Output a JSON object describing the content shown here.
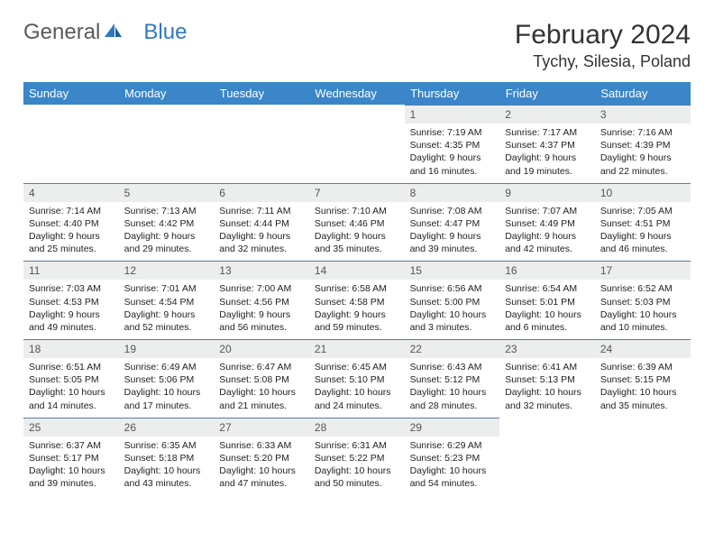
{
  "brand": {
    "part1": "General",
    "part2": "Blue"
  },
  "title": "February 2024",
  "location": "Tychy, Silesia, Poland",
  "colors": {
    "header_bg": "#3a86c8",
    "daynum_bg": "#eceded",
    "daynum_border": "#5b7ba0",
    "text": "#222222",
    "logo_gray": "#5a5a5a",
    "logo_blue": "#2f78bd"
  },
  "weekdays": [
    "Sunday",
    "Monday",
    "Tuesday",
    "Wednesday",
    "Thursday",
    "Friday",
    "Saturday"
  ],
  "weeks": [
    [
      null,
      null,
      null,
      null,
      {
        "n": "1",
        "sr": "7:19 AM",
        "ss": "4:35 PM",
        "dl": "9 hours and 16 minutes."
      },
      {
        "n": "2",
        "sr": "7:17 AM",
        "ss": "4:37 PM",
        "dl": "9 hours and 19 minutes."
      },
      {
        "n": "3",
        "sr": "7:16 AM",
        "ss": "4:39 PM",
        "dl": "9 hours and 22 minutes."
      }
    ],
    [
      {
        "n": "4",
        "sr": "7:14 AM",
        "ss": "4:40 PM",
        "dl": "9 hours and 25 minutes."
      },
      {
        "n": "5",
        "sr": "7:13 AM",
        "ss": "4:42 PM",
        "dl": "9 hours and 29 minutes."
      },
      {
        "n": "6",
        "sr": "7:11 AM",
        "ss": "4:44 PM",
        "dl": "9 hours and 32 minutes."
      },
      {
        "n": "7",
        "sr": "7:10 AM",
        "ss": "4:46 PM",
        "dl": "9 hours and 35 minutes."
      },
      {
        "n": "8",
        "sr": "7:08 AM",
        "ss": "4:47 PM",
        "dl": "9 hours and 39 minutes."
      },
      {
        "n": "9",
        "sr": "7:07 AM",
        "ss": "4:49 PM",
        "dl": "9 hours and 42 minutes."
      },
      {
        "n": "10",
        "sr": "7:05 AM",
        "ss": "4:51 PM",
        "dl": "9 hours and 46 minutes."
      }
    ],
    [
      {
        "n": "11",
        "sr": "7:03 AM",
        "ss": "4:53 PM",
        "dl": "9 hours and 49 minutes."
      },
      {
        "n": "12",
        "sr": "7:01 AM",
        "ss": "4:54 PM",
        "dl": "9 hours and 52 minutes."
      },
      {
        "n": "13",
        "sr": "7:00 AM",
        "ss": "4:56 PM",
        "dl": "9 hours and 56 minutes."
      },
      {
        "n": "14",
        "sr": "6:58 AM",
        "ss": "4:58 PM",
        "dl": "9 hours and 59 minutes."
      },
      {
        "n": "15",
        "sr": "6:56 AM",
        "ss": "5:00 PM",
        "dl": "10 hours and 3 minutes."
      },
      {
        "n": "16",
        "sr": "6:54 AM",
        "ss": "5:01 PM",
        "dl": "10 hours and 6 minutes."
      },
      {
        "n": "17",
        "sr": "6:52 AM",
        "ss": "5:03 PM",
        "dl": "10 hours and 10 minutes."
      }
    ],
    [
      {
        "n": "18",
        "sr": "6:51 AM",
        "ss": "5:05 PM",
        "dl": "10 hours and 14 minutes."
      },
      {
        "n": "19",
        "sr": "6:49 AM",
        "ss": "5:06 PM",
        "dl": "10 hours and 17 minutes."
      },
      {
        "n": "20",
        "sr": "6:47 AM",
        "ss": "5:08 PM",
        "dl": "10 hours and 21 minutes."
      },
      {
        "n": "21",
        "sr": "6:45 AM",
        "ss": "5:10 PM",
        "dl": "10 hours and 24 minutes."
      },
      {
        "n": "22",
        "sr": "6:43 AM",
        "ss": "5:12 PM",
        "dl": "10 hours and 28 minutes."
      },
      {
        "n": "23",
        "sr": "6:41 AM",
        "ss": "5:13 PM",
        "dl": "10 hours and 32 minutes."
      },
      {
        "n": "24",
        "sr": "6:39 AM",
        "ss": "5:15 PM",
        "dl": "10 hours and 35 minutes."
      }
    ],
    [
      {
        "n": "25",
        "sr": "6:37 AM",
        "ss": "5:17 PM",
        "dl": "10 hours and 39 minutes."
      },
      {
        "n": "26",
        "sr": "6:35 AM",
        "ss": "5:18 PM",
        "dl": "10 hours and 43 minutes."
      },
      {
        "n": "27",
        "sr": "6:33 AM",
        "ss": "5:20 PM",
        "dl": "10 hours and 47 minutes."
      },
      {
        "n": "28",
        "sr": "6:31 AM",
        "ss": "5:22 PM",
        "dl": "10 hours and 50 minutes."
      },
      {
        "n": "29",
        "sr": "6:29 AM",
        "ss": "5:23 PM",
        "dl": "10 hours and 54 minutes."
      },
      null,
      null
    ]
  ],
  "labels": {
    "sunrise": "Sunrise:",
    "sunset": "Sunset:",
    "daylight": "Daylight:"
  }
}
